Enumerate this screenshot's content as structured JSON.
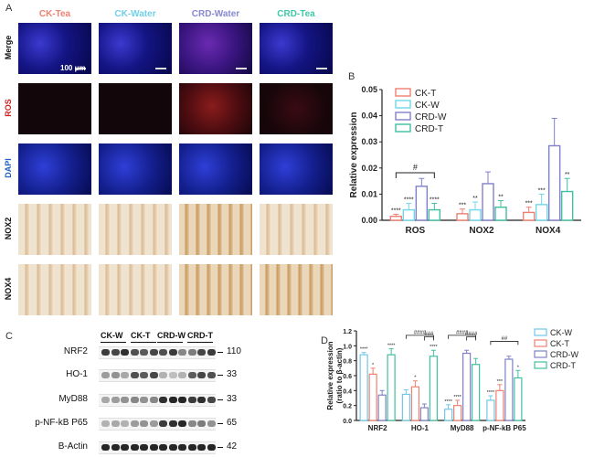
{
  "panel_a": {
    "letter": "A",
    "columns": [
      {
        "label": "CK-Tea",
        "color": "#f08070"
      },
      {
        "label": "CK-Water",
        "color": "#70d0e8"
      },
      {
        "label": "CRD-Water",
        "color": "#8888d0"
      },
      {
        "label": "CRD-Tea",
        "color": "#40c8a8"
      }
    ],
    "rows": [
      {
        "label": "Merge",
        "color": "#111111"
      },
      {
        "label": "ROS",
        "color": "#d02020"
      },
      {
        "label": "DAPI",
        "color": "#2060c0"
      },
      {
        "label": "NOX2",
        "color": "#111111"
      },
      {
        "label": "NOX4",
        "color": "#111111"
      }
    ],
    "scale_label": "100 μm"
  },
  "panel_b": {
    "letter": "B",
    "chart_data": {
      "type": "bar",
      "ylabel": "Relative expression",
      "ylim": [
        0,
        0.05
      ],
      "yticks": [
        "0.00",
        "0.01",
        "0.02",
        "0.03",
        "0.04",
        "0.05"
      ],
      "categories": [
        "ROS",
        "NOX2",
        "NOX4"
      ],
      "series": [
        {
          "name": "CK-T",
          "color": "#f08070",
          "values": [
            0.0015,
            0.0025,
            0.003
          ],
          "errors": [
            0.0008,
            0.0018,
            0.002
          ]
        },
        {
          "name": "CK-W",
          "color": "#70d8e8",
          "values": [
            0.004,
            0.004,
            0.006
          ],
          "errors": [
            0.0025,
            0.003,
            0.004
          ]
        },
        {
          "name": "CRD-W",
          "color": "#8080c8",
          "values": [
            0.013,
            0.014,
            0.0285
          ],
          "errors": [
            0.003,
            0.0045,
            0.0105
          ]
        },
        {
          "name": "CRD-T",
          "color": "#40c0a0",
          "values": [
            0.004,
            0.005,
            0.011
          ],
          "errors": [
            0.0025,
            0.0025,
            0.005
          ]
        }
      ],
      "significance": [
        [
          "****",
          "****",
          "",
          "****"
        ],
        [
          "***",
          "**",
          "",
          "**"
        ],
        [
          "***",
          "***",
          "",
          "**"
        ]
      ],
      "bracket_label": "#",
      "legend_position": "top-left"
    }
  },
  "panel_c": {
    "letter": "C",
    "groups": [
      "CK-W",
      "CK-T",
      "CRD-W",
      "CRD-T"
    ],
    "rows": [
      {
        "label": "NRF2",
        "kda": "110",
        "bands": [
          0.85,
          0.8,
          0.9,
          0.75,
          0.7,
          0.8,
          0.75,
          0.85,
          0.5,
          0.55,
          0.8,
          0.85
        ]
      },
      {
        "label": "HO-1",
        "kda": "33",
        "bands": [
          0.4,
          0.45,
          0.35,
          0.75,
          0.7,
          0.8,
          0.3,
          0.25,
          0.3,
          0.7,
          0.8,
          0.75
        ]
      },
      {
        "label": "MyD88",
        "kda": "33",
        "bands": [
          0.35,
          0.4,
          0.45,
          0.5,
          0.45,
          0.5,
          0.9,
          0.95,
          0.95,
          0.85,
          0.9,
          0.8
        ]
      },
      {
        "label": "p-NF-kB P65",
        "kda": "65",
        "bands": [
          0.3,
          0.35,
          0.3,
          0.4,
          0.45,
          0.4,
          0.85,
          0.9,
          0.95,
          0.5,
          0.55,
          0.45
        ]
      },
      {
        "label": "B-Actin",
        "kda": "42",
        "bands": [
          0.95,
          0.95,
          0.95,
          0.95,
          0.95,
          0.95,
          0.95,
          0.95,
          0.95,
          0.95,
          0.95,
          0.95
        ]
      }
    ]
  },
  "panel_d": {
    "letter": "D",
    "chart_data": {
      "type": "bar",
      "ylabel": "Relative expression\n(ratio to β-actin)",
      "ylabel_lines": [
        "Relative expression",
        "(ratio to β-actin)"
      ],
      "ylim": [
        0,
        1.2
      ],
      "yticks": [
        "0.0",
        "0.2",
        "0.4",
        "0.6",
        "0.8",
        "1.0",
        "1.2"
      ],
      "categories": [
        "NRF2",
        "HO-1",
        "MyD88",
        "p-NF-kB P65"
      ],
      "series": [
        {
          "name": "CK-W",
          "color": "#70c8e8",
          "values": [
            0.88,
            0.35,
            0.15,
            0.27
          ],
          "errors": [
            0.03,
            0.06,
            0.06,
            0.06
          ]
        },
        {
          "name": "CK-T",
          "color": "#f08070",
          "values": [
            0.62,
            0.45,
            0.2,
            0.4
          ],
          "errors": [
            0.08,
            0.08,
            0.07,
            0.08
          ]
        },
        {
          "name": "CRD-W",
          "color": "#8080c8",
          "values": [
            0.34,
            0.17,
            0.9,
            0.82
          ],
          "errors": [
            0.06,
            0.05,
            0.04,
            0.04
          ]
        },
        {
          "name": "CRD-T",
          "color": "#40c0a0",
          "values": [
            0.88,
            0.86,
            0.75,
            0.57
          ],
          "errors": [
            0.08,
            0.08,
            0.08,
            0.1
          ]
        }
      ],
      "significance": [
        [
          "****",
          "*",
          "",
          "****"
        ],
        [
          "",
          "*",
          "",
          "****"
        ],
        [
          "****",
          "****",
          "",
          ""
        ],
        [
          "****",
          "***",
          "",
          "*"
        ]
      ],
      "brackets": [
        {
          "category": 1,
          "labels": [
            "####",
            "###"
          ]
        },
        {
          "category": 2,
          "labels": [
            "####",
            "####"
          ]
        },
        {
          "category": 3,
          "labels": [
            "##"
          ]
        }
      ],
      "legend_position": "top-right"
    }
  }
}
